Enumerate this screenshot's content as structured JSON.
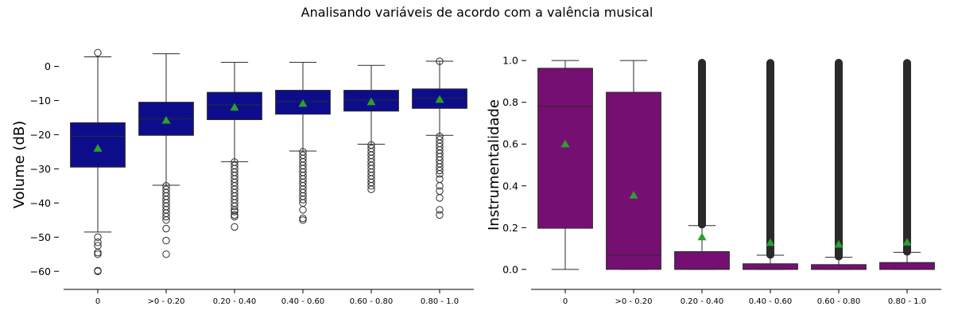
{
  "figure": {
    "title": "Analisando variáveis de acordo com a valência musical"
  },
  "colors": {
    "volume_box": "#0d0d8c",
    "instr_box": "#750f72",
    "mean_marker": "#2ca02c",
    "line": "#2b2b2b"
  },
  "chart_data": [
    {
      "type": "box",
      "ylabel": "Volume (dB)",
      "xlabel": "",
      "categories": [
        "0",
        ">0 - 0.20",
        "0.20 - 0.40",
        "0.40 - 0.60",
        "0.60 - 0.80",
        "0.80 - 1.0"
      ],
      "yticks": [
        0,
        -10,
        -20,
        -30,
        -40,
        -50,
        -60
      ],
      "ylim": [
        -62.5,
        5.0
      ],
      "boxes": [
        {
          "whisker_low": -48.5,
          "q1": -29.5,
          "median": -20.5,
          "q3": -16.5,
          "whisker_high": 2.8,
          "mean": -24.0,
          "outliers": [
            4.0,
            -50.0,
            -51.5,
            -52.5,
            -54.5,
            -55.0,
            -59.8,
            -60.0
          ]
        },
        {
          "whisker_low": -34.8,
          "q1": -20.2,
          "median": -15.3,
          "q3": -10.5,
          "whisker_high": 3.7,
          "mean": -15.8,
          "outliers": [
            -35.0,
            -36.0,
            -37.0,
            -38.0,
            -39.0,
            -40.0,
            -41.0,
            -42.0,
            -43.0,
            -44.0,
            -45.0,
            -47.5,
            -51.0,
            -55.0
          ]
        },
        {
          "whisker_low": -27.9,
          "q1": -15.6,
          "median": -11.3,
          "q3": -7.6,
          "whisker_high": 1.2,
          "mean": -12.0,
          "outliers": [
            -28.0,
            -29.0,
            -30.0,
            -31.0,
            -32.0,
            -33.0,
            -34.0,
            -35.0,
            -36.0,
            -37.0,
            -38.0,
            -39.0,
            -40.0,
            -41.0,
            -42.0,
            -42.5,
            -43.5,
            -44.0,
            -47.0
          ]
        },
        {
          "whisker_low": -24.8,
          "q1": -14.0,
          "median": -10.3,
          "q3": -7.0,
          "whisker_high": 1.2,
          "mean": -10.9,
          "outliers": [
            -25.0,
            -26.0,
            -27.0,
            -28.0,
            -29.0,
            -30.0,
            -31.0,
            -32.0,
            -33.0,
            -34.0,
            -35.0,
            -36.0,
            -37.0,
            -38.0,
            -39.0,
            -40.0,
            -42.0,
            -44.5,
            -45.0
          ]
        },
        {
          "whisker_low": -22.8,
          "q1": -13.1,
          "median": -9.9,
          "q3": -7.0,
          "whisker_high": 0.3,
          "mean": -10.4,
          "outliers": [
            -23.0,
            -24.0,
            -25.0,
            -26.0,
            -27.0,
            -28.0,
            -29.0,
            -30.0,
            -31.0,
            -32.0,
            -33.0,
            -34.0,
            -35.0,
            -36.0
          ]
        },
        {
          "whisker_low": -20.2,
          "q1": -12.3,
          "median": -9.3,
          "q3": -6.6,
          "whisker_high": 1.5,
          "mean": -9.7,
          "outliers": [
            1.5,
            -20.5,
            -21.5,
            -22.5,
            -23.5,
            -24.5,
            -25.5,
            -26.5,
            -27.5,
            -28.5,
            -29.5,
            -30.5,
            -31.5,
            -33.0,
            -35.0,
            -36.5,
            -38.5,
            -42.0,
            -43.5
          ]
        }
      ]
    },
    {
      "type": "box",
      "ylabel": "Instrumentalidade",
      "xlabel": "",
      "categories": [
        "0",
        ">0 - 0.20",
        "0.20 - 0.40",
        "0.40 - 0.60",
        "0.60 - 0.80",
        "0.80 - 1.0"
      ],
      "yticks": [
        0.0,
        0.2,
        0.4,
        0.6,
        0.8,
        1.0
      ],
      "yticklabels": [
        "0.0",
        "0.2",
        "0.4",
        "0.6",
        "0.8",
        "1.0"
      ],
      "ylim": [
        -0.05,
        1.05
      ],
      "boxes": [
        {
          "whisker_low": 0.0,
          "q1": 0.197,
          "median": 0.78,
          "q3": 0.963,
          "whisker_high": 1.0,
          "mean": 0.6,
          "outlier_range": null
        },
        {
          "whisker_low": 0.0,
          "q1": 0.0,
          "median": 0.068,
          "q3": 0.848,
          "whisker_high": 1.0,
          "mean": 0.355,
          "outlier_range": null
        },
        {
          "whisker_low": 0.0,
          "q1": 0.0,
          "median": 0.001,
          "q3": 0.085,
          "whisker_high": 0.21,
          "mean": 0.155,
          "outlier_range": [
            0.215,
            0.99
          ]
        },
        {
          "whisker_low": 0.0,
          "q1": 0.0,
          "median": 0.0005,
          "q3": 0.027,
          "whisker_high": 0.068,
          "mean": 0.128,
          "outlier_range": [
            0.07,
            0.99
          ]
        },
        {
          "whisker_low": 0.0,
          "q1": 0.0,
          "median": 0.0003,
          "q3": 0.023,
          "whisker_high": 0.058,
          "mean": 0.12,
          "outlier_range": [
            0.062,
            0.99
          ]
        },
        {
          "whisker_low": 0.0,
          "q1": 0.0,
          "median": 0.0006,
          "q3": 0.033,
          "whisker_high": 0.082,
          "mean": 0.13,
          "outlier_range": [
            0.085,
            0.99
          ]
        }
      ]
    }
  ]
}
